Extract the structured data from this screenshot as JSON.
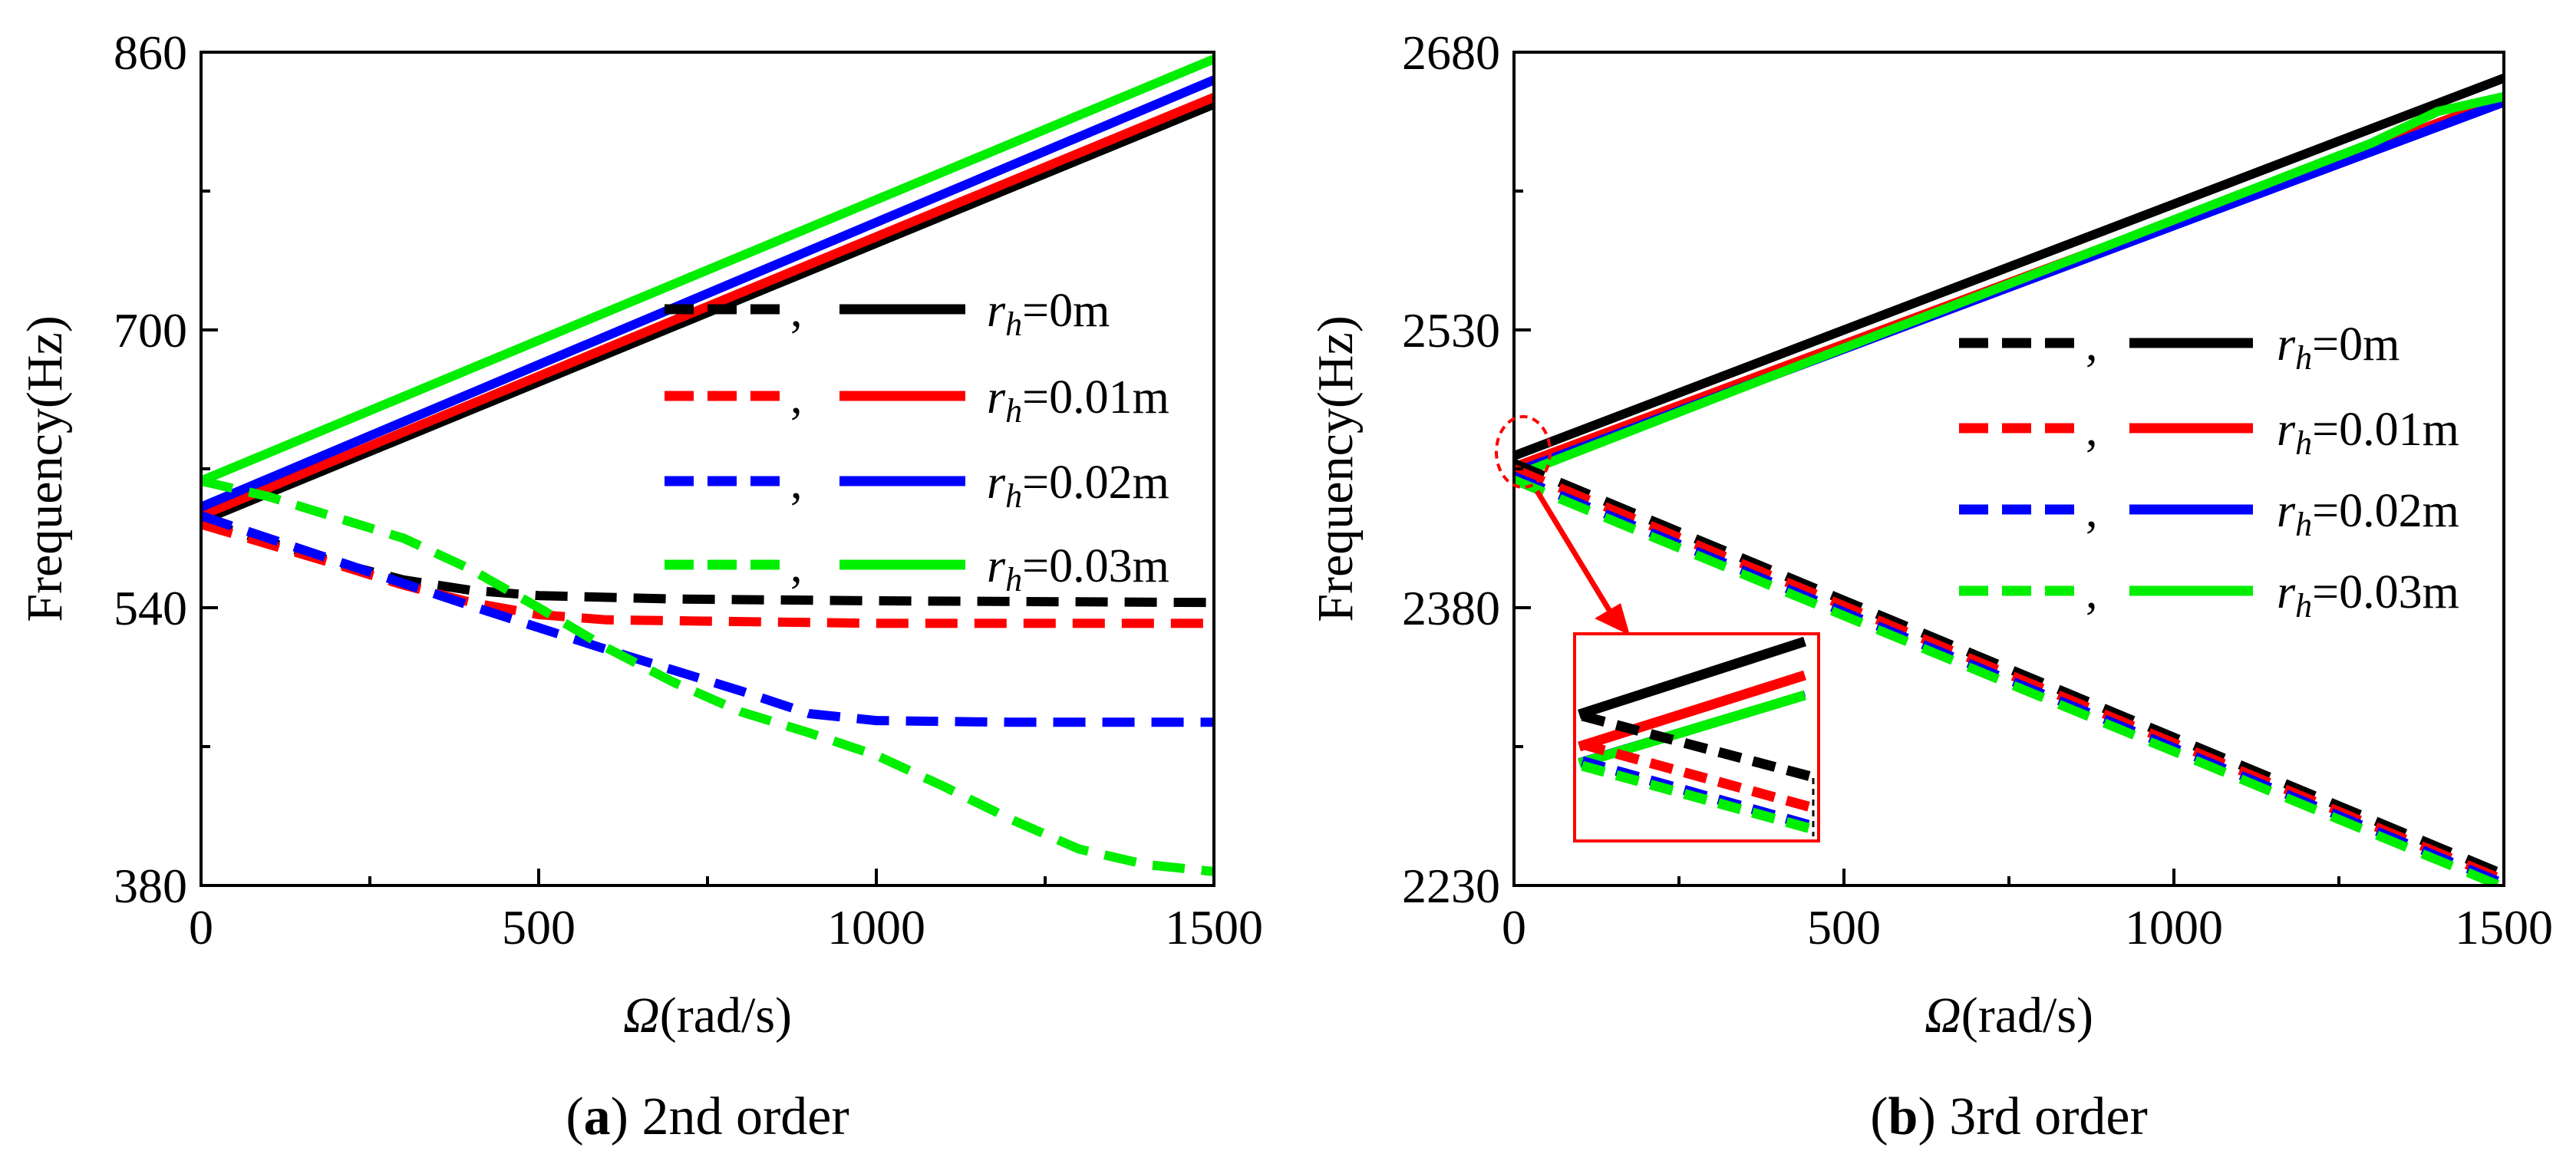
{
  "chart_data": [
    {
      "id": "a",
      "type": "line",
      "caption_letter": "a",
      "caption_text": " 2nd order",
      "xlabel_symbol": "Ω",
      "xlabel_unit": "(rad/s)",
      "ylabel": "Frequency(Hz)",
      "xlim": [
        0,
        1500
      ],
      "ylim": [
        380,
        860
      ],
      "xticks": [
        0,
        500,
        1000,
        1500
      ],
      "yticks": [
        380,
        540,
        700,
        860
      ],
      "legend": [
        {
          "symbol": "r",
          "sub": "h",
          "value": "=0m",
          "color": "#000000"
        },
        {
          "symbol": "r",
          "sub": "h",
          "value": "=0.01m",
          "color": "#ff0000"
        },
        {
          "symbol": "r",
          "sub": "h",
          "value": "=0.02m",
          "color": "#0000ff"
        },
        {
          "symbol": "r",
          "sub": "h",
          "value": "=0.03m",
          "color": "#00ee00"
        }
      ],
      "legend_sep": ",",
      "series": [
        {
          "name": "r_h=0m forward",
          "style": "solid",
          "color": "#000000",
          "x": [
            0,
            1500
          ],
          "y": [
            590,
            830
          ]
        },
        {
          "name": "r_h=0.01m forward",
          "style": "solid",
          "color": "#ff0000",
          "x": [
            0,
            1500
          ],
          "y": [
            593,
            834
          ]
        },
        {
          "name": "r_h=0.02m forward",
          "style": "solid",
          "color": "#0000ff",
          "x": [
            0,
            1500
          ],
          "y": [
            598,
            844
          ]
        },
        {
          "name": "r_h=0.03m forward",
          "style": "solid",
          "color": "#00ee00",
          "x": [
            0,
            1500
          ],
          "y": [
            613,
            856
          ]
        },
        {
          "name": "r_h=0m backward",
          "style": "dashed",
          "color": "#000000",
          "x": [
            0,
            200,
            300,
            400,
            500,
            700,
            1000,
            1500
          ],
          "y": [
            590,
            566,
            556,
            550,
            547,
            545,
            544,
            543
          ]
        },
        {
          "name": "r_h=0.01m backward",
          "style": "dashed",
          "color": "#ff0000",
          "x": [
            0,
            200,
            300,
            400,
            500,
            600,
            800,
            1000,
            1500
          ],
          "y": [
            588,
            565,
            553,
            543,
            536,
            533,
            532,
            531,
            531
          ]
        },
        {
          "name": "r_h=0.02m backward",
          "style": "dashed",
          "color": "#0000ff",
          "x": [
            0,
            200,
            400,
            600,
            700,
            800,
            900,
            1000,
            1200,
            1500
          ],
          "y": [
            593,
            567,
            541,
            516,
            504,
            492,
            479,
            475,
            474,
            474
          ]
        },
        {
          "name": "r_h=0.03m backward",
          "style": "dashed",
          "color": "#00ee00",
          "x": [
            0,
            100,
            200,
            300,
            400,
            500,
            600,
            700,
            800,
            900,
            1000,
            1100,
            1200,
            1300,
            1400,
            1500
          ],
          "y": [
            613,
            604,
            592,
            580,
            562,
            540,
            517,
            497,
            480,
            468,
            455,
            437,
            418,
            401,
            392,
            388
          ]
        }
      ]
    },
    {
      "id": "b",
      "type": "line",
      "caption_letter": "b",
      "caption_text": " 3rd order",
      "xlabel_symbol": "Ω",
      "xlabel_unit": "(rad/s)",
      "ylabel": "Frequency(Hz)",
      "xlim": [
        0,
        1500
      ],
      "ylim": [
        2230,
        2680
      ],
      "xticks": [
        0,
        500,
        1000,
        1500
      ],
      "yticks": [
        2230,
        2380,
        2530,
        2680
      ],
      "legend": [
        {
          "symbol": "r",
          "sub": "h",
          "value": "=0m",
          "color": "#000000"
        },
        {
          "symbol": "r",
          "sub": "h",
          "value": "=0.01m",
          "color": "#ff0000"
        },
        {
          "symbol": "r",
          "sub": "h",
          "value": "=0.02m",
          "color": "#0000ff"
        },
        {
          "symbol": "r",
          "sub": "h",
          "value": "=0.03m",
          "color": "#00ee00"
        }
      ],
      "legend_sep": ",",
      "series": [
        {
          "name": "r_h=0m forward",
          "style": "solid",
          "color": "#000000",
          "x": [
            0,
            1500
          ],
          "y": [
            2462,
            2666
          ]
        },
        {
          "name": "r_h=0.01m forward",
          "style": "solid",
          "color": "#ff0000",
          "x": [
            0,
            1500
          ],
          "y": [
            2456,
            2655
          ]
        },
        {
          "name": "r_h=0.02m forward",
          "style": "solid",
          "color": "#0000ff",
          "x": [
            0,
            1500
          ],
          "y": [
            2453,
            2653
          ]
        },
        {
          "name": "r_h=0.03m forward",
          "style": "solid",
          "color": "#00ee00",
          "x": [
            0,
            1300,
            1400,
            1500
          ],
          "y": [
            2451,
            2631,
            2648,
            2656
          ]
        },
        {
          "name": "r_h=0m backward",
          "style": "dashed",
          "color": "#000000",
          "x": [
            0,
            1500
          ],
          "y": [
            2458,
            2236
          ]
        },
        {
          "name": "r_h=0.01m backward",
          "style": "dashed",
          "color": "#ff0000",
          "x": [
            0,
            1500
          ],
          "y": [
            2455,
            2233
          ]
        },
        {
          "name": "r_h=0.02m backward",
          "style": "dashed",
          "color": "#0000ff",
          "x": [
            0,
            1500
          ],
          "y": [
            2451,
            2231
          ]
        },
        {
          "name": "r_h=0.03m backward",
          "style": "dashed",
          "color": "#00ee00",
          "x": [
            0,
            1500
          ],
          "y": [
            2449,
            2229
          ]
        }
      ],
      "inset": {
        "note": "zoomed view of the curves near Ω = 0"
      }
    }
  ]
}
